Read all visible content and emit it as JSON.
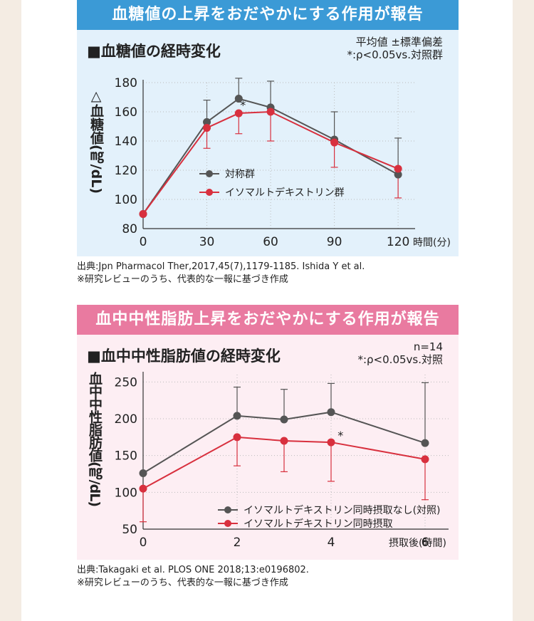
{
  "chart1": {
    "banner": "血糖値の上昇をおだやかにする作用が報告",
    "title": "■血糖値の経時変化",
    "note1": "平均値 ±標準偏差",
    "note2": "*:ρ<0.05vs.対照群",
    "ylabel": "△血糖値(㎎/dL)",
    "source1": "出典:Jpn Pharmacol Ther,2017,45(7),1179-1185. Ishida Y et al.",
    "source2": "※研究レビューのうち、代表的な一報に基づき作成"
  },
  "chart2": {
    "banner": "血中中性脂肪上昇をおだやかにする作用が報告",
    "title": "■血中中性脂肪値の経時変化",
    "note1": "n=14",
    "note2": "*:ρ<0.05vs.対照",
    "ylabel": "血中中性脂肪値(㎎/dL)",
    "source1": "出典:Takagaki et al. PLOS ONE 2018;13:e0196802.",
    "source2": "※研究レビューのうち、代表的な一報に基づき作成"
  },
  "colors": {
    "control": "#555555",
    "treatment": "#d8303e",
    "banner1": "#3b9ad6",
    "banner2": "#e97aa0"
  },
  "chart_data": [
    {
      "type": "line",
      "title": "■血糖値の経時変化",
      "xlabel": "時間(分)",
      "ylabel": "△血糖値(㎎/dL)",
      "xlim": [
        0,
        128
      ],
      "ylim": [
        80,
        180
      ],
      "xticks": [
        0,
        30,
        60,
        90,
        120
      ],
      "yticks": [
        80,
        100,
        120,
        140,
        160,
        180
      ],
      "grid": true,
      "legend": "center",
      "series": [
        {
          "name": "対称群",
          "color": "#555555",
          "x": [
            0,
            30,
            45,
            60,
            90,
            120
          ],
          "y": [
            90,
            153,
            169,
            163,
            141,
            117
          ],
          "err_hi": [
            null,
            168,
            183,
            181,
            160,
            142
          ]
        },
        {
          "name": "イソマルトデキストリン群",
          "color": "#d8303e",
          "x": [
            0,
            30,
            45,
            60,
            90,
            120
          ],
          "y": [
            90,
            149,
            159,
            160,
            139,
            121
          ],
          "err_lo": [
            null,
            135,
            145,
            140,
            122,
            101
          ]
        }
      ],
      "annotations": [
        {
          "text": "*",
          "x": 47,
          "y": 162
        }
      ]
    },
    {
      "type": "line",
      "title": "■血中中性脂肪値の経時変化",
      "xlabel": "摂取後(時間)",
      "ylabel": "血中中性脂肪値(㎎/dL)",
      "xlim": [
        0,
        6.5
      ],
      "ylim": [
        50,
        260
      ],
      "xticks": [
        0,
        2,
        4,
        6
      ],
      "yticks": [
        50,
        100,
        150,
        200,
        250
      ],
      "grid": true,
      "legend": "bottom-right",
      "series": [
        {
          "name": "イソマルトデキストリン同時摂取なし(対照)",
          "color": "#555555",
          "x": [
            0,
            2,
            3,
            4,
            6
          ],
          "y": [
            126,
            204,
            199,
            209,
            167
          ],
          "err_hi": [
            null,
            243,
            240,
            248,
            249
          ]
        },
        {
          "name": "イソマルトデキストリン同時摂取",
          "color": "#d8303e",
          "x": [
            0,
            2,
            3,
            4,
            6
          ],
          "y": [
            105,
            175,
            170,
            168,
            145
          ],
          "err_lo": [
            60,
            136,
            128,
            115,
            90
          ]
        }
      ],
      "annotations": [
        {
          "text": "*",
          "x": 4.2,
          "y": 172
        }
      ]
    }
  ]
}
